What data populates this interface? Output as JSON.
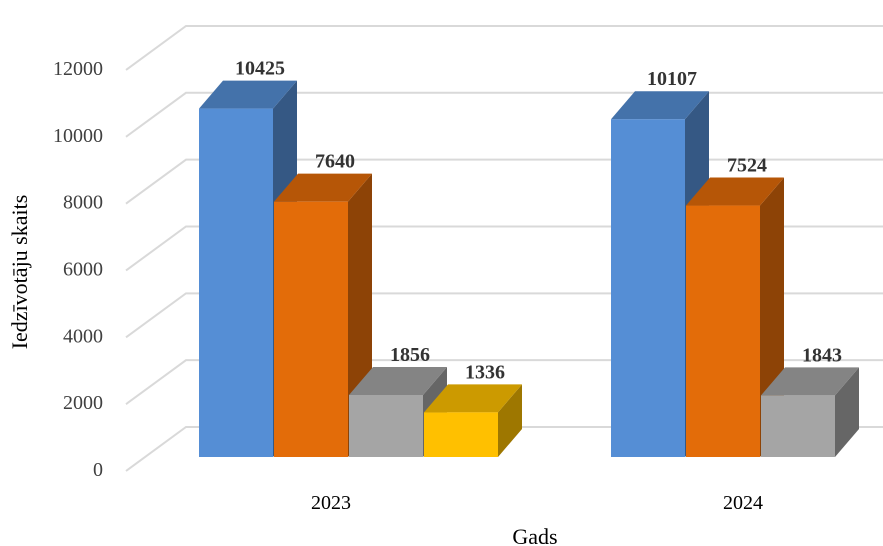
{
  "chart_data": {
    "type": "bar",
    "style": "3d-clustered-column",
    "categories": [
      "2023",
      "2024"
    ],
    "series": [
      {
        "values": [
          10425,
          10107
        ],
        "color": "#558ed5"
      },
      {
        "values": [
          7640,
          7524
        ],
        "color": "#e36c09"
      },
      {
        "values": [
          1856,
          1843
        ],
        "color": "#a5a5a5"
      },
      {
        "values": [
          1336,
          null
        ],
        "color": "#ffc000"
      }
    ],
    "data_labels": [
      [
        "10425",
        "7640",
        "1856",
        "1336"
      ],
      [
        "10107",
        "7524",
        "1843",
        ""
      ]
    ],
    "yticks": [
      "0",
      "2000",
      "4000",
      "6000",
      "8000",
      "10000",
      "12000"
    ],
    "ylim": [
      0,
      12000
    ],
    "xlabel": "Gads",
    "ylabel": "Iedzīvotāju skaits",
    "grid": true,
    "legend": "none"
  }
}
